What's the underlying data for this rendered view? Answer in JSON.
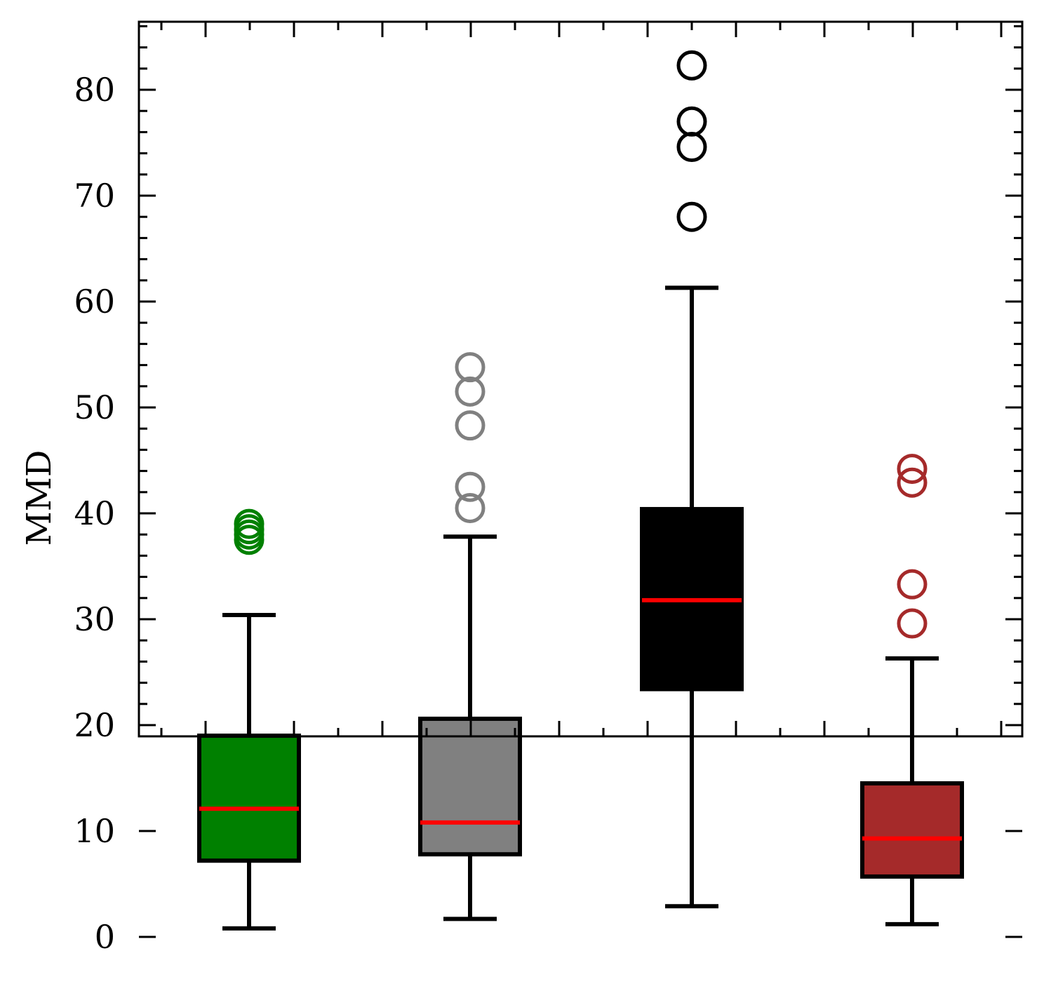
{
  "chart_data": {
    "type": "boxplot",
    "ylabel": "MMD",
    "xlabel": "",
    "ylim": [
      -3.5,
      86.5
    ],
    "yticks": [
      0,
      10,
      20,
      30,
      40,
      50,
      60,
      70,
      80
    ],
    "ytick_labels": [
      "0",
      "10",
      "20",
      "30",
      "40",
      "50",
      "60",
      "70",
      "80"
    ],
    "yminor_step": 2,
    "grid": false,
    "legend": "none",
    "median_color": "#ff0000",
    "boxes": [
      {
        "fill": "#008000",
        "outlier_color": "#008000",
        "whisker_low": 0.8,
        "q1": 7.2,
        "median": 12.1,
        "q3": 19.0,
        "whisker_high": 30.4,
        "outliers": [
          37.5,
          38.0,
          38.5,
          39.0
        ]
      },
      {
        "fill": "#808080",
        "outlier_color": "#808080",
        "whisker_low": 1.7,
        "q1": 7.8,
        "median": 10.8,
        "q3": 20.6,
        "whisker_high": 37.8,
        "outliers": [
          40.5,
          42.5,
          48.3,
          51.5,
          53.8
        ]
      },
      {
        "fill": "#000000",
        "outlier_color": "#000000",
        "whisker_low": 2.9,
        "q1": 23.4,
        "median": 31.8,
        "q3": 40.4,
        "whisker_high": 61.3,
        "outliers": [
          68.0,
          74.6,
          77.0,
          82.3
        ]
      },
      {
        "fill": "#a52a2a",
        "outlier_color": "#a52a2a",
        "whisker_low": 1.2,
        "q1": 5.7,
        "median": 9.3,
        "q3": 14.5,
        "whisker_high": 26.3,
        "outliers": [
          29.6,
          33.3,
          42.9,
          44.2
        ]
      }
    ]
  }
}
